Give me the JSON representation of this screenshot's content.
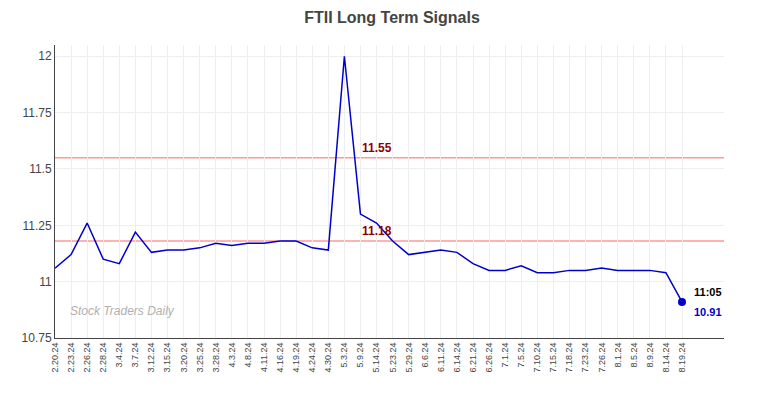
{
  "chart_data": {
    "type": "line",
    "title": "FTII Long Term Signals",
    "watermark": "Stock Traders Daily",
    "color": "#0000cc",
    "marker": "circle",
    "categories": [
      "2.20.24",
      "2.23.24",
      "2.26.24",
      "2.28.24",
      "3.4.24",
      "3.7.24",
      "3.12.24",
      "3.15.24",
      "3.20.24",
      "3.25.24",
      "3.28.24",
      "4.3.24",
      "4.8.24",
      "4.11.24",
      "4.16.24",
      "4.19.24",
      "4.24.24",
      "4.30.24",
      "5.3.24",
      "5.9.24",
      "5.14.24",
      "5.23.24",
      "5.29.24",
      "6.6.24",
      "6.11.24",
      "6.14.24",
      "6.21.24",
      "6.26.24",
      "7.1.24",
      "7.5.24",
      "7.10.24",
      "7.15.24",
      "7.18.24",
      "7.23.24",
      "7.26.24",
      "8.1.24",
      "8.5.24",
      "8.9.24",
      "8.14.24",
      "8.19.24"
    ],
    "values": [
      11.06,
      11.12,
      11.26,
      11.1,
      11.08,
      11.22,
      11.13,
      11.14,
      11.14,
      11.15,
      11.17,
      11.16,
      11.17,
      11.17,
      11.18,
      11.18,
      11.15,
      11.14,
      12.0,
      11.3,
      11.26,
      11.18,
      11.12,
      11.13,
      11.14,
      11.13,
      11.08,
      11.05,
      11.05,
      11.07,
      11.04,
      11.04,
      11.05,
      11.05,
      11.06,
      11.05,
      11.05,
      11.05,
      11.04,
      10.91
    ],
    "hlines": [
      {
        "value": 11.55,
        "label": "11.55",
        "color": "#ff9999",
        "label_color": "#8b0000",
        "label_at": "5.9.24"
      },
      {
        "value": 11.18,
        "label": "11.18",
        "color": "#ff9999",
        "label_color": "#8b0000",
        "label_at": "5.9.24"
      }
    ],
    "end_labels": [
      {
        "text": "11:05",
        "color": "#000000"
      },
      {
        "text": "10.91",
        "color": "#0000cc"
      }
    ],
    "ylim": [
      10.75,
      12.05
    ],
    "yticks": [
      10.75,
      11,
      11.25,
      11.5,
      11.75,
      12
    ],
    "grid": true
  }
}
